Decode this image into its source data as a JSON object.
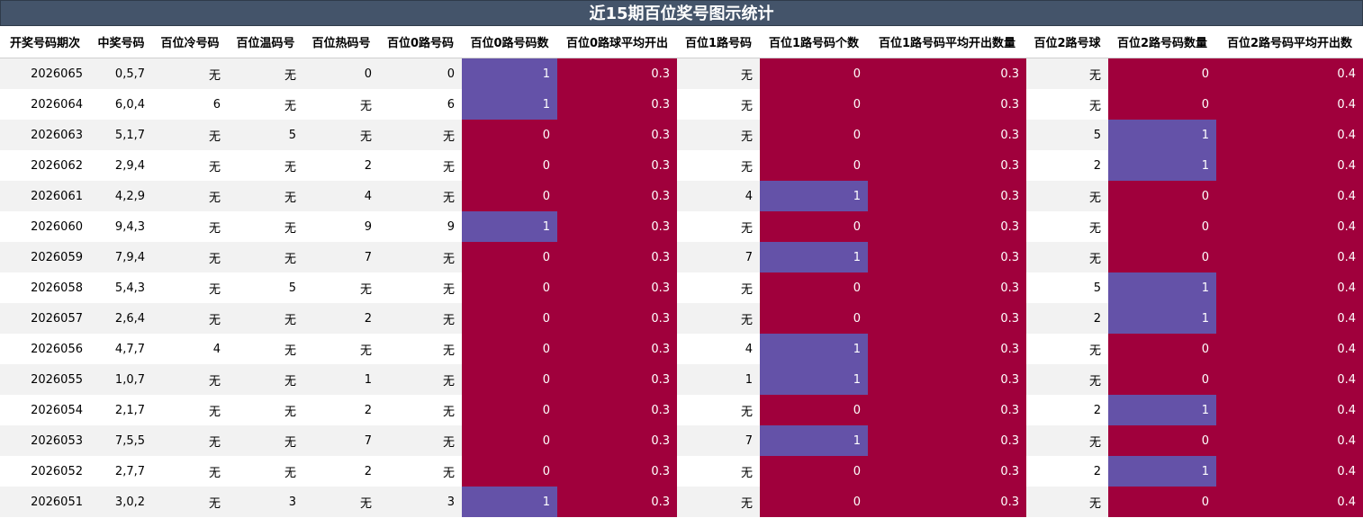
{
  "title": "近15期百位奖号图示统计",
  "colors": {
    "title_bg": "#44546a",
    "maroon": "#a0003c",
    "purple": "#6452a8"
  },
  "columns": [
    "开奖号码期次",
    "中奖号码",
    "百位冷号码",
    "百位温码号",
    "百位热码号",
    "百位0路号码",
    "百位0路号码数",
    "百位0路球平均开出",
    "百位1路号码",
    "百位1路号码个数",
    "百位1路号码平均开出数量",
    "百位2路号球",
    "百位2路号码数量",
    "百位2路号码平均开出数"
  ],
  "rows": [
    [
      "2026065",
      "0,5,7",
      "无",
      "无",
      "0",
      "0",
      "1",
      "0.3",
      "无",
      "0",
      "0.3",
      "无",
      "0",
      "0.4"
    ],
    [
      "2026064",
      "6,0,4",
      "6",
      "无",
      "无",
      "6",
      "1",
      "0.3",
      "无",
      "0",
      "0.3",
      "无",
      "0",
      "0.4"
    ],
    [
      "2026063",
      "5,1,7",
      "无",
      "5",
      "无",
      "无",
      "0",
      "0.3",
      "无",
      "0",
      "0.3",
      "5",
      "1",
      "0.4"
    ],
    [
      "2026062",
      "2,9,4",
      "无",
      "无",
      "2",
      "无",
      "0",
      "0.3",
      "无",
      "0",
      "0.3",
      "2",
      "1",
      "0.4"
    ],
    [
      "2026061",
      "4,2,9",
      "无",
      "无",
      "4",
      "无",
      "0",
      "0.3",
      "4",
      "1",
      "0.3",
      "无",
      "0",
      "0.4"
    ],
    [
      "2026060",
      "9,4,3",
      "无",
      "无",
      "9",
      "9",
      "1",
      "0.3",
      "无",
      "0",
      "0.3",
      "无",
      "0",
      "0.4"
    ],
    [
      "2026059",
      "7,9,4",
      "无",
      "无",
      "7",
      "无",
      "0",
      "0.3",
      "7",
      "1",
      "0.3",
      "无",
      "0",
      "0.4"
    ],
    [
      "2026058",
      "5,4,3",
      "无",
      "5",
      "无",
      "无",
      "0",
      "0.3",
      "无",
      "0",
      "0.3",
      "5",
      "1",
      "0.4"
    ],
    [
      "2026057",
      "2,6,4",
      "无",
      "无",
      "2",
      "无",
      "0",
      "0.3",
      "无",
      "0",
      "0.3",
      "2",
      "1",
      "0.4"
    ],
    [
      "2026056",
      "4,7,7",
      "4",
      "无",
      "无",
      "无",
      "0",
      "0.3",
      "4",
      "1",
      "0.3",
      "无",
      "0",
      "0.4"
    ],
    [
      "2026055",
      "1,0,7",
      "无",
      "无",
      "1",
      "无",
      "0",
      "0.3",
      "1",
      "1",
      "0.3",
      "无",
      "0",
      "0.4"
    ],
    [
      "2026054",
      "2,1,7",
      "无",
      "无",
      "2",
      "无",
      "0",
      "0.3",
      "无",
      "0",
      "0.3",
      "2",
      "1",
      "0.4"
    ],
    [
      "2026053",
      "7,5,5",
      "无",
      "无",
      "7",
      "无",
      "0",
      "0.3",
      "7",
      "1",
      "0.3",
      "无",
      "0",
      "0.4"
    ],
    [
      "2026052",
      "2,7,7",
      "无",
      "无",
      "2",
      "无",
      "0",
      "0.3",
      "无",
      "0",
      "0.3",
      "2",
      "1",
      "0.4"
    ],
    [
      "2026051",
      "3,0,2",
      "无",
      "3",
      "无",
      "3",
      "1",
      "0.3",
      "无",
      "0",
      "0.3",
      "无",
      "0",
      "0.4"
    ]
  ]
}
